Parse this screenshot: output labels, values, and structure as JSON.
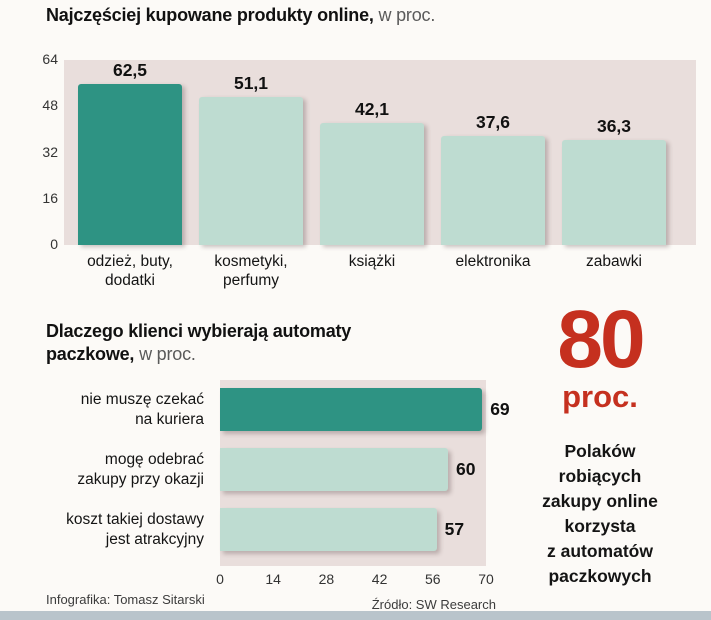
{
  "colors": {
    "background": "#fcfaf7",
    "plot_bg": "#e9dedc",
    "bar_dark": "#2e9383",
    "bar_light": "#bedcd1",
    "stat_red": "#c5301f",
    "bottom_strip": "#b9c4cb"
  },
  "chart_data": [
    {
      "type": "bar",
      "orientation": "vertical",
      "title": "Najczęściej kupowane produkty online,",
      "title_suffix": "w proc.",
      "categories": [
        "odzież, buty,\ndodatki",
        "kosmetyki,\nperfumy",
        "książki",
        "elektronika",
        "zabawki"
      ],
      "values": [
        62.5,
        51.1,
        42.1,
        37.6,
        36.3
      ],
      "value_labels": [
        "62,5",
        "51,1",
        "42,1",
        "37,6",
        "36,3"
      ],
      "bar_styles": [
        "dark",
        "light",
        "light",
        "light",
        "light"
      ],
      "yticks": [
        64,
        48,
        32,
        16,
        0
      ],
      "ylim": [
        0,
        64
      ],
      "grid": false,
      "legend": "none"
    },
    {
      "type": "bar",
      "orientation": "horizontal",
      "title": "Dlaczego klienci wybierają automaty\npaczkowe,",
      "title_suffix": "w proc.",
      "categories": [
        "nie muszę czekać\nna kuriera",
        "mogę odebrać\nzakupy przy okazji",
        "koszt takiej dostawy\njest atrakcyjny"
      ],
      "values": [
        69,
        60,
        57
      ],
      "value_labels": [
        "69",
        "60",
        "57"
      ],
      "bar_styles": [
        "dark",
        "light",
        "light"
      ],
      "xticks": [
        0,
        14,
        28,
        42,
        56,
        70
      ],
      "xlim": [
        0,
        70
      ],
      "grid": false,
      "legend": "none"
    }
  ],
  "stat": {
    "number": "80",
    "unit": "proc.",
    "description": "Polaków\nrobiących\nzakupy online\nkorzysta\nz automatów\npaczkowych"
  },
  "footer": {
    "credit": "Infografika: Tomasz Sitarski",
    "source": "Źródło: SW Research"
  }
}
